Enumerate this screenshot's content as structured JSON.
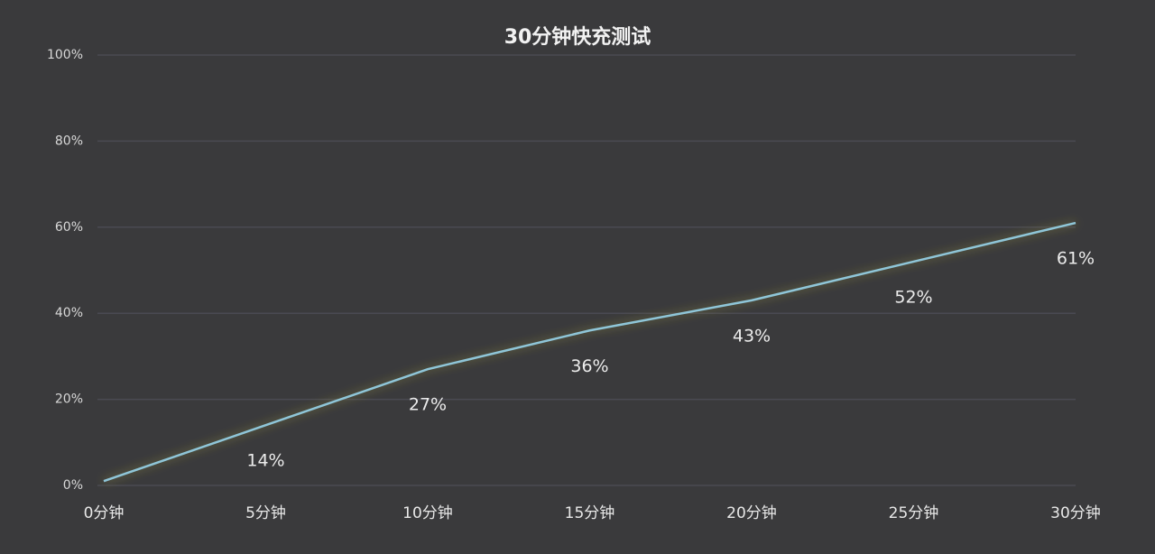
{
  "chart_data": {
    "type": "line",
    "title": "30分钟快充测试",
    "categories": [
      "0分钟",
      "5分钟",
      "10分钟",
      "15分钟",
      "20分钟",
      "25分钟",
      "30分钟"
    ],
    "values": [
      1,
      14,
      27,
      36,
      43,
      52,
      61
    ],
    "value_labels": [
      null,
      "14%",
      "27%",
      "36%",
      "43%",
      "52%",
      "61%"
    ],
    "color": "#8fc6d8",
    "ylim": [
      0,
      100
    ],
    "yticks": [
      {
        "value": 0,
        "label": "0%"
      },
      {
        "value": 20,
        "label": "20%"
      },
      {
        "value": 40,
        "label": "40%"
      },
      {
        "value": 60,
        "label": "60%"
      },
      {
        "value": 80,
        "label": "80%"
      },
      {
        "value": 100,
        "label": "100%"
      }
    ],
    "grid": true
  }
}
